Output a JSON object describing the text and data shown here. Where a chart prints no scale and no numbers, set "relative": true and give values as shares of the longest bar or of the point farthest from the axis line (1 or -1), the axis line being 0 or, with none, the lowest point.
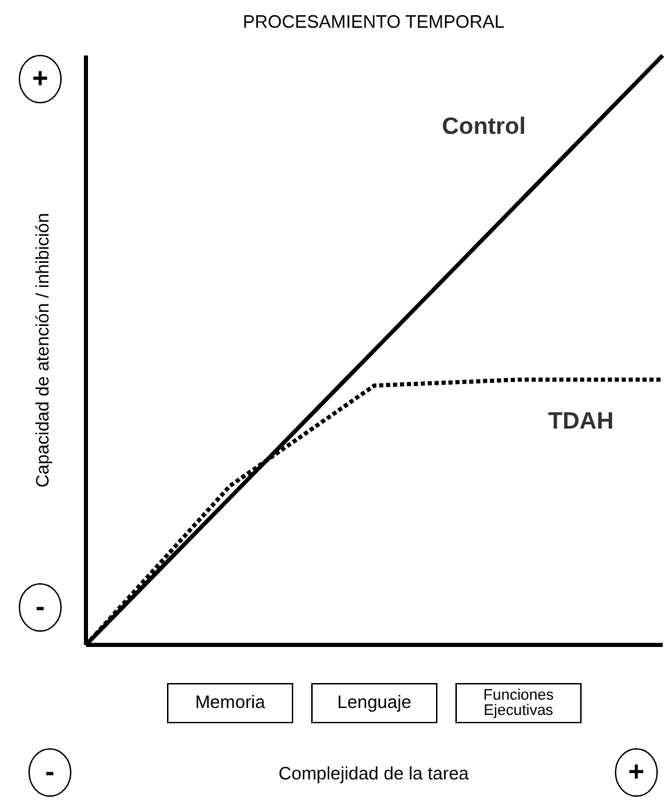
{
  "chart_data": {
    "type": "line",
    "title": "PROCESAMIENTO TEMPORAL",
    "xlabel": "Complejidad de la tarea",
    "ylabel": "Capacidad de atención / inhibición",
    "relative": true,
    "categories": [
      null,
      "Memoria",
      "Lenguaje",
      "Funciones Ejecutivas",
      null
    ],
    "series": [
      {
        "name": "Control",
        "color": "#000000",
        "line_style": "solid",
        "values": [
          0,
          0.25,
          0.5,
          0.75,
          1
        ]
      },
      {
        "name": "TDAH",
        "color": "#000000",
        "line_style": "dotted",
        "values": [
          0,
          0.27,
          0.44,
          0.45,
          0.45
        ]
      }
    ],
    "annotations": [
      "+",
      "-",
      "-",
      "+"
    ],
    "marker": "none"
  }
}
